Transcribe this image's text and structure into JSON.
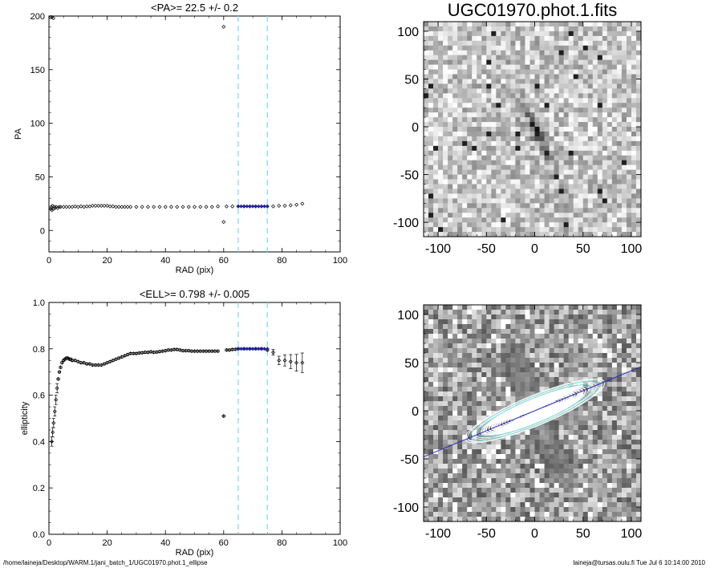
{
  "chart_data": [
    {
      "type": "scatter",
      "title": "<PA>=  22.5 +/-   0.2",
      "xlabel": "RAD (pix)",
      "ylabel": "PA",
      "xlim": [
        0,
        100
      ],
      "ylim": [
        -20,
        200
      ],
      "xticks": [
        "0",
        "20",
        "40",
        "60",
        "80",
        "100"
      ],
      "yticks": [
        "0",
        "50",
        "100",
        "150",
        "200"
      ],
      "vlines": [
        65,
        75
      ],
      "series": [
        {
          "values": [
            [
              0.5,
              199
            ],
            [
              1,
              199
            ],
            [
              1.5,
              198
            ],
            [
              0.6,
              20
            ],
            [
              0.8,
              22
            ],
            [
              1.0,
              19
            ],
            [
              1.2,
              23
            ],
            [
              1.5,
              20
            ],
            [
              1.8,
              22
            ],
            [
              2.1,
              21
            ],
            [
              2.5,
              22
            ],
            [
              3,
              21
            ],
            [
              3.5,
              22
            ],
            [
              4,
              22
            ],
            [
              5,
              22
            ],
            [
              6,
              22
            ],
            [
              7,
              22
            ],
            [
              8,
              22
            ],
            [
              9,
              22.5
            ],
            [
              10,
              22
            ],
            [
              11,
              22.5
            ],
            [
              12,
              22
            ],
            [
              13,
              22.5
            ],
            [
              14,
              22.5
            ],
            [
              15,
              23
            ],
            [
              16,
              23
            ],
            [
              17,
              23
            ],
            [
              18,
              23
            ],
            [
              19,
              23
            ],
            [
              20,
              23
            ],
            [
              21,
              22.5
            ],
            [
              22,
              22.5
            ],
            [
              23,
              22
            ],
            [
              24,
              22
            ],
            [
              25,
              22
            ],
            [
              26,
              22
            ],
            [
              27,
              22
            ],
            [
              28,
              22
            ],
            [
              30,
              22
            ],
            [
              32,
              22
            ],
            [
              34,
              22
            ],
            [
              36,
              22
            ],
            [
              38,
              22
            ],
            [
              40,
              22
            ],
            [
              42,
              22
            ],
            [
              44,
              22
            ],
            [
              46,
              22
            ],
            [
              48,
              22
            ],
            [
              50,
              22
            ],
            [
              52,
              22
            ],
            [
              54,
              22
            ],
            [
              56,
              22
            ],
            [
              58,
              22.5
            ],
            [
              60,
              190
            ],
            [
              60,
              8
            ],
            [
              61,
              22.5
            ],
            [
              63,
              22.5
            ],
            [
              65,
              22.5
            ],
            [
              67,
              22.5
            ],
            [
              69,
              22.5
            ],
            [
              71,
              22.5
            ],
            [
              73,
              22.5
            ],
            [
              75,
              22.5
            ],
            [
              77,
              22.5
            ],
            [
              79,
              23
            ],
            [
              81,
              23
            ],
            [
              83,
              23.5
            ],
            [
              85,
              24
            ],
            [
              87,
              25
            ]
          ]
        },
        {
          "name": "",
          "values": [
            [
              65,
              22.5
            ],
            [
              66,
              22.5
            ],
            [
              67,
              22.5
            ],
            [
              68,
              22.5
            ],
            [
              69,
              22.5
            ],
            [
              70,
              22.5
            ],
            [
              71,
              22.5
            ],
            [
              72,
              22.5
            ],
            [
              73,
              22.5
            ],
            [
              74,
              22.5
            ],
            [
              75,
              22.5
            ]
          ]
        }
      ]
    },
    {
      "type": "scatter",
      "title": "<ELL>= 0.798 +/-  0.005",
      "xlabel": "RAD (pix)",
      "ylabel": "ellipticity",
      "xlim": [
        0,
        100
      ],
      "ylim": [
        0,
        1
      ],
      "xticks": [
        "0",
        "20",
        "40",
        "60",
        "80",
        "100"
      ],
      "yticks": [
        "0.0",
        "0.2",
        "0.4",
        "0.6",
        "0.8",
        "1.0"
      ],
      "vlines": [
        65,
        75
      ],
      "series": [
        {
          "values": [
            [
              1.0,
              0.4
            ],
            [
              1.3,
              0.44
            ],
            [
              1.6,
              0.48
            ],
            [
              2.0,
              0.53
            ],
            [
              2.4,
              0.58
            ],
            [
              2.8,
              0.63
            ],
            [
              3.2,
              0.67
            ],
            [
              3.6,
              0.7
            ],
            [
              4.0,
              0.72
            ],
            [
              4.5,
              0.74
            ],
            [
              5,
              0.75
            ],
            [
              5.5,
              0.755
            ],
            [
              6,
              0.76
            ],
            [
              6.5,
              0.76
            ],
            [
              7,
              0.755
            ],
            [
              7.5,
              0.755
            ],
            [
              8,
              0.75
            ],
            [
              9,
              0.75
            ],
            [
              10,
              0.745
            ],
            [
              11,
              0.74
            ],
            [
              12,
              0.74
            ],
            [
              13,
              0.735
            ],
            [
              14,
              0.735
            ],
            [
              15,
              0.73
            ],
            [
              16,
              0.73
            ],
            [
              17,
              0.73
            ],
            [
              18,
              0.73
            ],
            [
              19,
              0.735
            ],
            [
              20,
              0.74
            ],
            [
              21,
              0.745
            ],
            [
              22,
              0.75
            ],
            [
              23,
              0.755
            ],
            [
              24,
              0.76
            ],
            [
              25,
              0.765
            ],
            [
              26,
              0.77
            ],
            [
              27,
              0.775
            ],
            [
              28,
              0.78
            ],
            [
              29,
              0.78
            ],
            [
              30,
              0.78
            ],
            [
              31,
              0.782
            ],
            [
              32,
              0.783
            ],
            [
              33,
              0.785
            ],
            [
              34,
              0.785
            ],
            [
              35,
              0.787
            ],
            [
              36,
              0.785
            ],
            [
              37,
              0.786
            ],
            [
              38,
              0.788
            ],
            [
              39,
              0.79
            ],
            [
              40,
              0.792
            ],
            [
              41,
              0.795
            ],
            [
              42,
              0.795
            ],
            [
              43,
              0.797
            ],
            [
              44,
              0.797
            ],
            [
              45,
              0.795
            ],
            [
              46,
              0.792
            ],
            [
              47,
              0.792
            ],
            [
              48,
              0.792
            ],
            [
              49,
              0.79
            ],
            [
              50,
              0.79
            ],
            [
              51,
              0.79
            ],
            [
              52,
              0.79
            ],
            [
              53,
              0.79
            ],
            [
              54,
              0.79
            ],
            [
              55,
              0.79
            ],
            [
              56,
              0.79
            ],
            [
              57,
              0.79
            ],
            [
              58,
              0.79
            ],
            [
              60,
              0.51
            ],
            [
              61,
              0.795
            ],
            [
              62,
              0.795
            ],
            [
              63,
              0.797
            ],
            [
              64,
              0.798
            ],
            [
              65,
              0.8
            ],
            [
              67,
              0.8
            ],
            [
              69,
              0.8
            ],
            [
              71,
              0.8
            ],
            [
              73,
              0.8
            ],
            [
              75,
              0.795
            ],
            [
              77,
              0.785
            ],
            [
              79,
              0.75
            ],
            [
              81,
              0.75
            ],
            [
              83,
              0.745
            ],
            [
              85,
              0.74
            ],
            [
              87,
              0.74
            ]
          ]
        },
        {
          "name": "",
          "values": [
            [
              65,
              0.8
            ],
            [
              66,
              0.8
            ],
            [
              67,
              0.8
            ],
            [
              68,
              0.8
            ],
            [
              69,
              0.8
            ],
            [
              70,
              0.8
            ],
            [
              71,
              0.8
            ],
            [
              72,
              0.8
            ],
            [
              73,
              0.8
            ],
            [
              74,
              0.8
            ],
            [
              75,
              0.8
            ]
          ]
        }
      ]
    },
    {
      "type": "heatmap",
      "title": "UGC01970.phot.1.fits",
      "xlim": [
        -115,
        110
      ],
      "ylim": [
        -115,
        110
      ],
      "xticks": [
        "-100",
        "-50",
        "0",
        "50",
        "100"
      ],
      "yticks": [
        "-100",
        "-50",
        "0",
        "50",
        "100"
      ],
      "colormap": "grayscale inverted",
      "major_axis_pa_deg": 22.5
    },
    {
      "type": "heatmap",
      "xlim": [
        -115,
        110
      ],
      "ylim": [
        -115,
        110
      ],
      "xticks": [
        "-100",
        "-50",
        "0",
        "50",
        "100"
      ],
      "yticks": [
        "-100",
        "-50",
        "0",
        "50",
        "100"
      ],
      "overlay": "fitted isophote ellipses and major-axis line",
      "major_axis_pa_deg": 22.5
    }
  ],
  "footer": {
    "left": "/home/laineja/Desktop/WARM.1/jani_batch_1/UGC01970.phot.1_ellipse",
    "right": "laineja@tursas.oulu.fi  Tue Jul  6 10:14:00 2010"
  },
  "colors": {
    "vline": "#7fdfef",
    "fit": "#2020a0",
    "axis_line": "#2828c8",
    "iso_cyan": "#60d8d0"
  }
}
